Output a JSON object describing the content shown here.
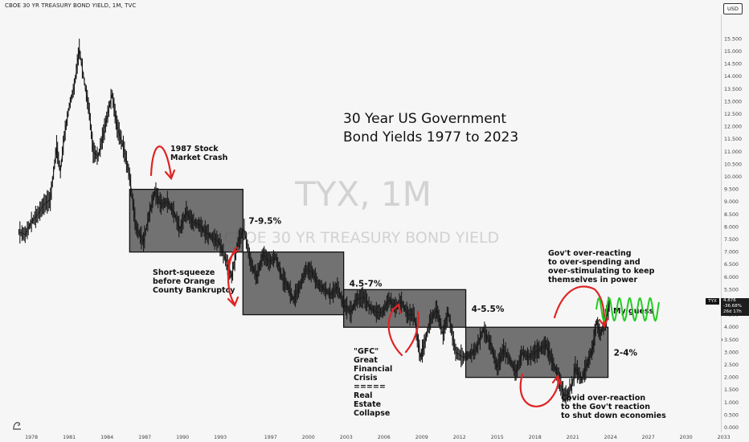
{
  "header": {
    "symbol_line": "CBOE 30 YR TREASURY BOND YIELD, 1M, TVC",
    "currency": "USD"
  },
  "watermark": {
    "ticker": "TYX, 1M",
    "name": "CBOE 30 YR TREASURY BOND YIELD"
  },
  "price_label": {
    "ticker": "TYX",
    "value": "4.876",
    "change": "-36.68%",
    "time": "26d 17h"
  },
  "colors": {
    "background": "#f6f6f6",
    "candles": "#1a1a1a",
    "range_box": "#5a5a5a",
    "annotation_red": "#e02424",
    "guess_green": "#22cc22"
  },
  "icons": [
    "bookmark-icon",
    "more-icon"
  ],
  "chart_data": {
    "type": "line",
    "title": "30 Year US Government Bond Yields 1977 to 2023",
    "xlabel": "",
    "ylabel": "",
    "xlim": [
      1975.5,
      2035
    ],
    "ylim": [
      0,
      16
    ],
    "x_ticks": [
      "1978",
      "1981",
      "1984",
      "1987",
      "1990",
      "1993",
      "1997",
      "2000",
      "2003",
      "2006",
      "2009",
      "2012",
      "2015",
      "2018",
      "2021",
      "2024",
      "2027",
      "2030",
      "2033"
    ],
    "y_ticks": [
      "0.000",
      "0.500",
      "1.000",
      "1.500",
      "2.000",
      "2.500",
      "3.000",
      "3.500",
      "4.000",
      "4.500",
      "5.000",
      "5.500",
      "6.000",
      "6.500",
      "7.000",
      "7.500",
      "8.000",
      "8.500",
      "9.000",
      "9.500",
      "10.000",
      "10.500",
      "11.000",
      "11.500",
      "12.000",
      "12.500",
      "13.000",
      "13.500",
      "14.000",
      "14.500",
      "15.000",
      "15.500"
    ],
    "series": [
      {
        "values": [
          [
            1977.0,
            7.8
          ],
          [
            1977.5,
            7.7
          ],
          [
            1978.0,
            8.2
          ],
          [
            1978.5,
            8.5
          ],
          [
            1979.0,
            8.9
          ],
          [
            1979.5,
            9.1
          ],
          [
            1980.0,
            11.2
          ],
          [
            1980.3,
            10.2
          ],
          [
            1980.6,
            11.6
          ],
          [
            1981.0,
            12.8
          ],
          [
            1981.4,
            13.6
          ],
          [
            1981.8,
            15.1
          ],
          [
            1982.2,
            13.8
          ],
          [
            1982.6,
            12.6
          ],
          [
            1982.9,
            11.0
          ],
          [
            1983.3,
            10.8
          ],
          [
            1983.8,
            11.9
          ],
          [
            1984.4,
            13.3
          ],
          [
            1984.8,
            12.0
          ],
          [
            1985.3,
            11.2
          ],
          [
            1985.8,
            10.0
          ],
          [
            1986.3,
            8.0
          ],
          [
            1986.9,
            7.4
          ],
          [
            1987.4,
            8.6
          ],
          [
            1987.8,
            9.4
          ],
          [
            1988.3,
            8.9
          ],
          [
            1988.8,
            9.0
          ],
          [
            1989.3,
            8.6
          ],
          [
            1989.8,
            7.9
          ],
          [
            1990.3,
            8.6
          ],
          [
            1990.8,
            8.2
          ],
          [
            1991.3,
            8.1
          ],
          [
            1991.8,
            7.8
          ],
          [
            1992.3,
            7.6
          ],
          [
            1992.9,
            7.4
          ],
          [
            1993.5,
            6.6
          ],
          [
            1993.9,
            6.0
          ],
          [
            1994.4,
            7.4
          ],
          [
            1994.9,
            7.9
          ],
          [
            1995.4,
            6.6
          ],
          [
            1995.9,
            6.0
          ],
          [
            1996.4,
            6.9
          ],
          [
            1996.9,
            6.6
          ],
          [
            1997.4,
            6.8
          ],
          [
            1997.9,
            6.0
          ],
          [
            1998.4,
            5.6
          ],
          [
            1998.8,
            5.1
          ],
          [
            1999.3,
            5.6
          ],
          [
            1999.8,
            6.3
          ],
          [
            2000.3,
            6.2
          ],
          [
            2000.8,
            5.7
          ],
          [
            2001.3,
            5.5
          ],
          [
            2001.8,
            5.3
          ],
          [
            2002.3,
            5.6
          ],
          [
            2002.8,
            4.9
          ],
          [
            2003.4,
            4.6
          ],
          [
            2003.8,
            5.1
          ],
          [
            2004.4,
            5.2
          ],
          [
            2004.9,
            4.8
          ],
          [
            2005.4,
            4.6
          ],
          [
            2005.9,
            4.6
          ],
          [
            2006.4,
            5.1
          ],
          [
            2006.9,
            4.8
          ],
          [
            2007.4,
            5.0
          ],
          [
            2007.9,
            4.5
          ],
          [
            2008.4,
            4.5
          ],
          [
            2008.9,
            2.8
          ],
          [
            2009.2,
            3.3
          ],
          [
            2009.7,
            4.3
          ],
          [
            2010.2,
            4.7
          ],
          [
            2010.7,
            3.7
          ],
          [
            2011.1,
            4.6
          ],
          [
            2011.7,
            3.0
          ],
          [
            2012.3,
            2.8
          ],
          [
            2012.8,
            2.9
          ],
          [
            2013.3,
            3.1
          ],
          [
            2013.9,
            3.9
          ],
          [
            2014.5,
            3.3
          ],
          [
            2015.0,
            2.4
          ],
          [
            2015.5,
            3.1
          ],
          [
            2016.0,
            2.7
          ],
          [
            2016.5,
            2.2
          ],
          [
            2017.0,
            3.0
          ],
          [
            2017.5,
            2.8
          ],
          [
            2018.0,
            3.0
          ],
          [
            2018.9,
            3.3
          ],
          [
            2019.4,
            2.6
          ],
          [
            2019.8,
            2.1
          ],
          [
            2020.3,
            1.3
          ],
          [
            2020.6,
            1.3
          ],
          [
            2021.0,
            1.8
          ],
          [
            2021.2,
            2.4
          ],
          [
            2021.7,
            1.9
          ],
          [
            2022.2,
            2.6
          ],
          [
            2022.6,
            3.2
          ],
          [
            2022.9,
            4.2
          ],
          [
            2023.2,
            3.7
          ],
          [
            2023.6,
            4.3
          ],
          [
            2023.9,
            4.9
          ]
        ]
      }
    ],
    "ranges": [
      {
        "label": "7-9.5%",
        "x": [
          1985.8,
          1994.8
        ],
        "y": [
          7.0,
          9.5
        ]
      },
      {
        "label": "4.5-7%",
        "x": [
          1994.8,
          2002.8
        ],
        "y": [
          4.5,
          7.0
        ]
      },
      {
        "label": "4-5.5%",
        "x": [
          2002.8,
          2012.5
        ],
        "y": [
          4.0,
          5.5
        ]
      },
      {
        "label": "2-4%",
        "x": [
          2012.5,
          2023.8
        ],
        "y": [
          2.0,
          4.0
        ]
      }
    ],
    "annotations": [
      "1987 Stock Market Crash",
      "Short-squeeze before Orange County Bankruptcy",
      "\"GFC\" Great Financial Crisis ===== Real Estate Collapse",
      "Covid over-reaction to the Gov't reaction to shut down economies",
      "Gov't over-reacting to over-spending and over-stimulating to keep themselves in power",
      "My guess"
    ]
  }
}
